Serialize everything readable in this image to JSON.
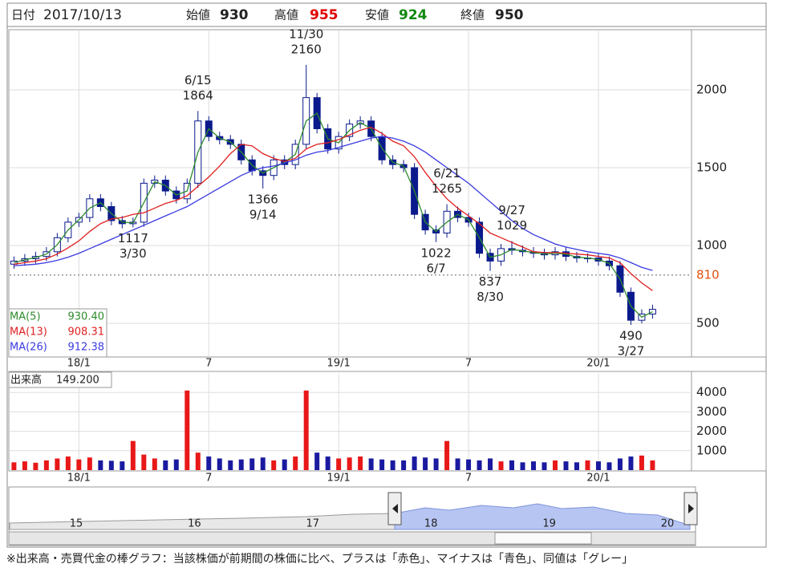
{
  "header": {
    "date_label": "日付",
    "date": "2017/10/13",
    "open_label": "始値",
    "open": 930,
    "high_label": "高値",
    "high": 955,
    "low_label": "安値",
    "low": 924,
    "close_label": "終値",
    "close": 950
  },
  "chart_data": {
    "type": "candlestick",
    "xlim": [
      -3.2,
      28.3
    ],
    "xticks": [
      {
        "value": 0,
        "label": "18/1"
      },
      {
        "value": 6,
        "label": "7"
      },
      {
        "value": 12,
        "label": "19/1"
      },
      {
        "value": 18,
        "label": "7"
      },
      {
        "value": 24,
        "label": "20/1"
      }
    ],
    "ylim": [
      284,
      2381
    ],
    "yticks": [
      500,
      1000,
      1500,
      2000
    ],
    "grid": true,
    "up_color": "#ffffff",
    "down_color": "#0a1a8c",
    "candle_border": "#0a1a8c",
    "reference_line": {
      "value": 810,
      "color": "#e05010"
    },
    "candles": {
      "x": [
        -3,
        -2.5,
        -2,
        -1.5,
        -1,
        -0.5,
        0,
        0.5,
        1,
        1.5,
        2,
        2.5,
        3,
        3.5,
        4,
        4.5,
        5,
        5.5,
        6,
        6.5,
        7,
        7.5,
        8,
        8.5,
        9,
        9.5,
        10,
        10.5,
        11,
        11.5,
        12,
        12.5,
        13,
        13.5,
        14,
        14.5,
        15,
        15.5,
        16,
        16.5,
        17,
        17.5,
        18,
        18.5,
        19,
        19.5,
        20,
        20.5,
        21,
        21.5,
        22,
        22.5,
        23,
        23.5,
        24,
        24.5,
        25,
        25.5,
        26,
        26.5
      ],
      "open": [
        880,
        900,
        915,
        930,
        960,
        1050,
        1150,
        1180,
        1300,
        1250,
        1160,
        1140,
        1150,
        1400,
        1420,
        1350,
        1300,
        1400,
        1800,
        1700,
        1680,
        1650,
        1550,
        1480,
        1450,
        1550,
        1520,
        1650,
        1950,
        1750,
        1620,
        1700,
        1780,
        1800,
        1700,
        1550,
        1520,
        1500,
        1200,
        1100,
        1080,
        1220,
        1180,
        1150,
        950,
        900,
        980,
        970,
        960,
        950,
        940,
        960,
        930,
        920,
        920,
        900,
        870,
        700,
        520,
        560
      ],
      "high": [
        930,
        945,
        960,
        990,
        1080,
        1180,
        1210,
        1330,
        1330,
        1280,
        1190,
        1180,
        1430,
        1450,
        1450,
        1380,
        1430,
        1864,
        1830,
        1730,
        1710,
        1680,
        1580,
        1510,
        1580,
        1580,
        1680,
        2160,
        1980,
        1780,
        1730,
        1810,
        1830,
        1830,
        1730,
        1580,
        1550,
        1530,
        1230,
        1130,
        1265,
        1250,
        1210,
        1180,
        980,
        1010,
        1029,
        1000,
        990,
        980,
        990,
        990,
        960,
        950,
        950,
        930,
        900,
        730,
        590,
        620
      ],
      "low": [
        850,
        870,
        885,
        900,
        930,
        1020,
        1120,
        1150,
        1220,
        1130,
        1110,
        1117,
        1120,
        1370,
        1320,
        1270,
        1270,
        1370,
        1670,
        1650,
        1620,
        1520,
        1450,
        1366,
        1420,
        1490,
        1490,
        1620,
        1720,
        1590,
        1590,
        1670,
        1750,
        1670,
        1520,
        1490,
        1470,
        1170,
        1070,
        1022,
        1050,
        1150,
        1120,
        920,
        837,
        870,
        940,
        930,
        920,
        910,
        910,
        900,
        890,
        890,
        870,
        840,
        670,
        490,
        500,
        530
      ],
      "close": [
        900,
        915,
        930,
        960,
        1050,
        1150,
        1180,
        1300,
        1250,
        1160,
        1140,
        1150,
        1400,
        1420,
        1350,
        1300,
        1400,
        1800,
        1700,
        1680,
        1650,
        1550,
        1480,
        1450,
        1550,
        1520,
        1650,
        1950,
        1750,
        1620,
        1700,
        1780,
        1800,
        1700,
        1550,
        1520,
        1500,
        1200,
        1100,
        1080,
        1220,
        1180,
        1150,
        950,
        900,
        980,
        970,
        960,
        950,
        940,
        960,
        930,
        920,
        920,
        900,
        870,
        700,
        520,
        560,
        590
      ]
    },
    "series": [
      {
        "name": "MA(5)",
        "value_label": "930.40",
        "color": "#2e8b2e",
        "values": [
          890,
          908,
          923,
          945,
          1005,
          1100,
          1165,
          1240,
          1275,
          1205,
          1150,
          1145,
          1275,
          1410,
          1385,
          1325,
          1350,
          1600,
          1750,
          1690,
          1665,
          1600,
          1515,
          1465,
          1500,
          1535,
          1585,
          1800,
          1850,
          1685,
          1660,
          1740,
          1790,
          1750,
          1625,
          1535,
          1510,
          1350,
          1150,
          1090,
          1150,
          1200,
          1165,
          1050,
          925,
          940,
          975,
          965,
          955,
          945,
          950,
          945,
          925,
          920,
          910,
          885,
          785,
          610,
          540,
          575
        ]
      },
      {
        "name": "MA(13)",
        "value_label": "908.31",
        "color": "#e02020",
        "values": [
          880,
          890,
          900,
          915,
          945,
          985,
          1030,
          1090,
          1140,
          1170,
          1180,
          1200,
          1210,
          1240,
          1270,
          1290,
          1320,
          1380,
          1440,
          1510,
          1590,
          1650,
          1640,
          1590,
          1560,
          1540,
          1560,
          1620,
          1650,
          1660,
          1680,
          1710,
          1740,
          1760,
          1720,
          1670,
          1640,
          1570,
          1470,
          1380,
          1300,
          1240,
          1190,
          1140,
          1080,
          1050,
          1020,
          990,
          960,
          955,
          955,
          950,
          945,
          940,
          930,
          920,
          890,
          820,
          760,
          710
        ]
      },
      {
        "name": "MA(26)",
        "value_label": "912.38",
        "color": "#3a3ae0",
        "values": [
          870,
          875,
          880,
          890,
          905,
          925,
          950,
          980,
          1010,
          1040,
          1070,
          1100,
          1130,
          1160,
          1190,
          1220,
          1250,
          1290,
          1330,
          1370,
          1410,
          1450,
          1480,
          1500,
          1510,
          1530,
          1550,
          1580,
          1600,
          1610,
          1630,
          1650,
          1670,
          1690,
          1700,
          1690,
          1670,
          1640,
          1600,
          1550,
          1500,
          1450,
          1400,
          1340,
          1280,
          1220,
          1160,
          1110,
          1070,
          1040,
          1010,
          990,
          975,
          960,
          950,
          940,
          920,
          890,
          860,
          840
        ]
      }
    ],
    "annotations": [
      {
        "date": "11/30",
        "value": 2160
      },
      {
        "date": "6/15",
        "value": 1864
      },
      {
        "date": "3/30",
        "value": 1117
      },
      {
        "date": "9/14",
        "value": 1366
      },
      {
        "date": "6/21",
        "value": 1265
      },
      {
        "date": "6/7",
        "value": 1022
      },
      {
        "date": "9/27",
        "value": 1029
      },
      {
        "date": "8/30",
        "value": 837
      },
      {
        "date": "3/27",
        "value": 490
      }
    ],
    "volume": {
      "title": "出来高",
      "value_label": "149.200",
      "ylim": [
        0,
        5000
      ],
      "yticks": [
        1000,
        2000,
        3000,
        4000
      ],
      "up_color": "#e81818",
      "down_color": "#1a1aa0",
      "values": [
        400,
        450,
        380,
        500,
        600,
        700,
        550,
        650,
        500,
        480,
        450,
        1500,
        800,
        600,
        500,
        550,
        4100,
        900,
        700,
        600,
        500,
        550,
        600,
        650,
        500,
        550,
        700,
        4100,
        900,
        700,
        600,
        650,
        700,
        600,
        550,
        500,
        500,
        700,
        650,
        600,
        1500,
        600,
        550,
        500,
        600,
        450,
        500,
        400,
        450,
        400,
        500,
        450,
        400,
        500,
        450,
        400,
        600,
        700,
        750,
        500
      ]
    }
  },
  "navigator": {
    "labels": [
      15,
      16,
      17,
      18,
      19,
      20
    ]
  },
  "footer": "※出来高・売買代金の棒グラフ：当該株価が前期間の株価に比べ、プラスは「赤色」、マイナスは「青色」、同値は「グレー」"
}
